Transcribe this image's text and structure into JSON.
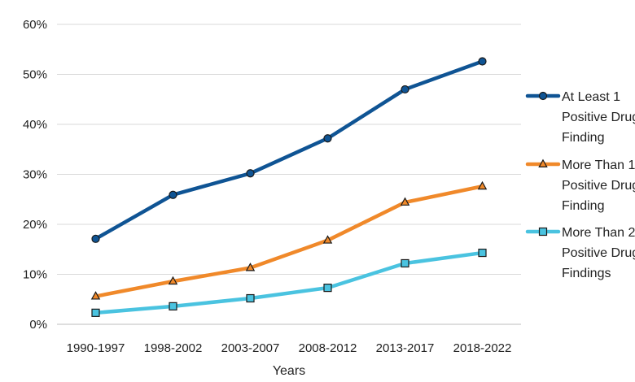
{
  "chart_data": {
    "type": "line",
    "xlabel": "Years",
    "ylabel": "",
    "categories": [
      "1990-1997",
      "1998-2002",
      "2003-2007",
      "2008-2012",
      "2013-2017",
      "2018-2022"
    ],
    "ylim": [
      0,
      60
    ],
    "yticks": [
      0,
      10,
      20,
      30,
      40,
      50,
      60
    ],
    "ytick_labels": [
      "0%",
      "10%",
      "20%",
      "30%",
      "40%",
      "50%",
      "60%"
    ],
    "grid": "horizontal",
    "legend_position": "right",
    "series": [
      {
        "name": "At Least 1 Positive Drug Finding",
        "legend_lines": [
          "At Least 1",
          "Positive Drug",
          "Finding"
        ],
        "values": [
          17.1,
          25.9,
          30.2,
          37.2,
          47.0,
          52.6
        ],
        "color": "#0f5494",
        "marker": "circle",
        "marker_color": "#0f5494"
      },
      {
        "name": "More Than 1 Positive Drug Finding",
        "legend_lines": [
          "More Than 1",
          "Positive Drug",
          "Finding"
        ],
        "values": [
          5.6,
          8.6,
          11.3,
          16.8,
          24.4,
          27.6
        ],
        "color": "#f0892a",
        "marker": "triangle",
        "marker_color": "#f0892a"
      },
      {
        "name": "More Than 2 Positive Drug Findings",
        "legend_lines": [
          "More Than 2",
          "Positive Drug",
          "Findings"
        ],
        "values": [
          2.3,
          3.6,
          5.2,
          7.3,
          12.2,
          14.3
        ],
        "color": "#4ac3e0",
        "marker": "square",
        "marker_color": "#4ac3e0"
      }
    ]
  }
}
